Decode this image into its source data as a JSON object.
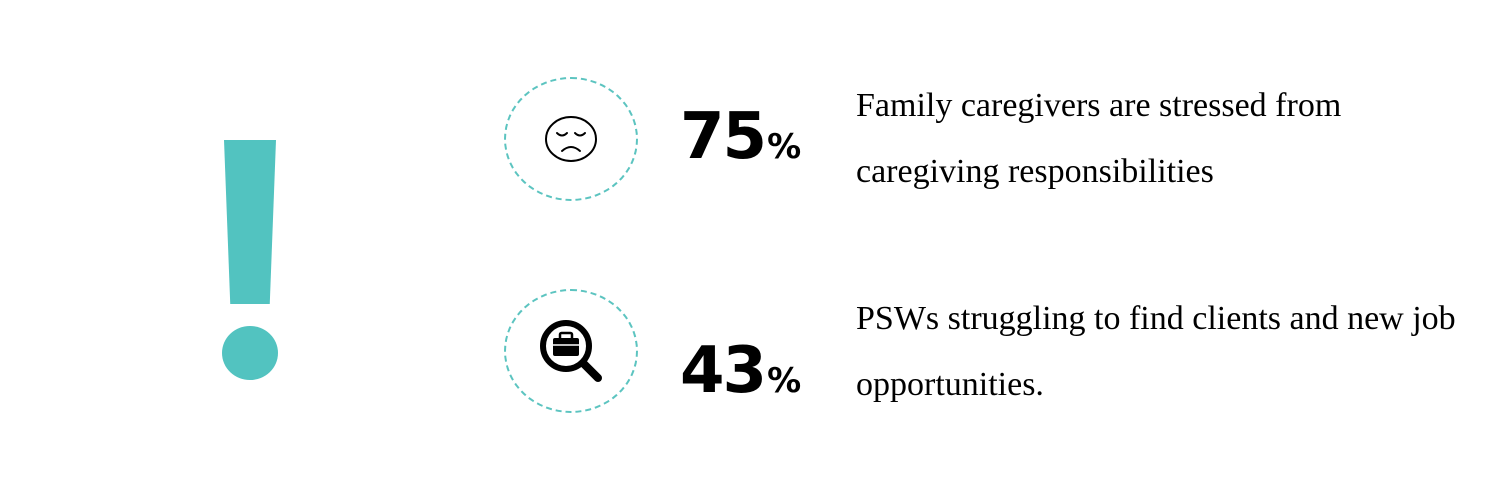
{
  "colors": {
    "accent": "#52c3c0",
    "text": "#000000",
    "background": "#ffffff"
  },
  "alert_icon": "exclamation-mark-icon",
  "stats": [
    {
      "icon": "sad-face-icon",
      "value": "75",
      "unit": "%",
      "description": "Family caregivers are stressed from caregiving responsibilities"
    },
    {
      "icon": "job-search-icon",
      "value": "43",
      "unit": "%",
      "description": "PSWs struggling to find clients and new job opportunities."
    }
  ]
}
